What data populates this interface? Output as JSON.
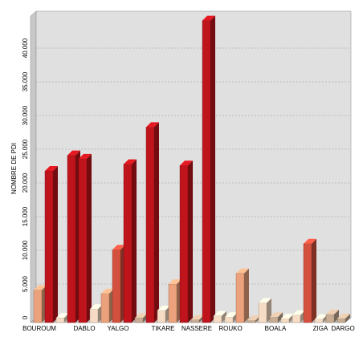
{
  "chart_data": {
    "type": "bar3d",
    "y_label": "NOMBRE DE PDI",
    "categories": [
      "BOUROUM",
      null,
      null,
      null,
      "DABLO",
      null,
      null,
      "YALGO",
      null,
      null,
      null,
      "TIKARE",
      null,
      null,
      "NASSERE",
      null,
      null,
      "ROUKO",
      null,
      null,
      null,
      "BOALA",
      null,
      null,
      null,
      "ZIGA",
      null,
      "DARGO"
    ],
    "values": [
      4800,
      22500,
      700,
      24800,
      24300,
      2000,
      4300,
      10800,
      23500,
      700,
      29000,
      1800,
      5700,
      23300,
      400,
      44800,
      1000,
      800,
      7300,
      300,
      2900,
      800,
      600,
      1100,
      11700,
      500,
      1200,
      600
    ],
    "colors": [
      "#eba27c",
      "#c0141c",
      "#f6dcc4",
      "#c0141c",
      "#c0141c",
      "#f6dcc4",
      "#eba27c",
      "#d4503e",
      "#c0141c",
      "#c8ad94",
      "#c0141c",
      "#f6dcc4",
      "#eba27c",
      "#c0141c",
      "#c8ad94",
      "#c0141c",
      "#f6dcc4",
      "#f6dcc4",
      "#eba27c",
      "#c8ad94",
      "#f6dcc4",
      "#c8ad94",
      "#f6dcc4",
      "#f6dcc4",
      "#d4503e",
      "#f6dcc4",
      "#c8ad94",
      "#c8ad94"
    ],
    "ylim": [
      0,
      45000
    ],
    "yticks": [
      0,
      {
        "value": 5000,
        "label": "5.000"
      },
      {
        "value": 10000,
        "label": "10.000"
      },
      {
        "value": 15000,
        "label": "15.000"
      },
      {
        "value": 20000,
        "label": "20.000"
      },
      {
        "value": 25000,
        "label": "25.000"
      },
      {
        "value": 30000,
        "label": "30.000"
      },
      {
        "value": 35000,
        "label": "35.000"
      },
      {
        "value": 40000,
        "label": "40.000"
      }
    ],
    "grid": true
  }
}
